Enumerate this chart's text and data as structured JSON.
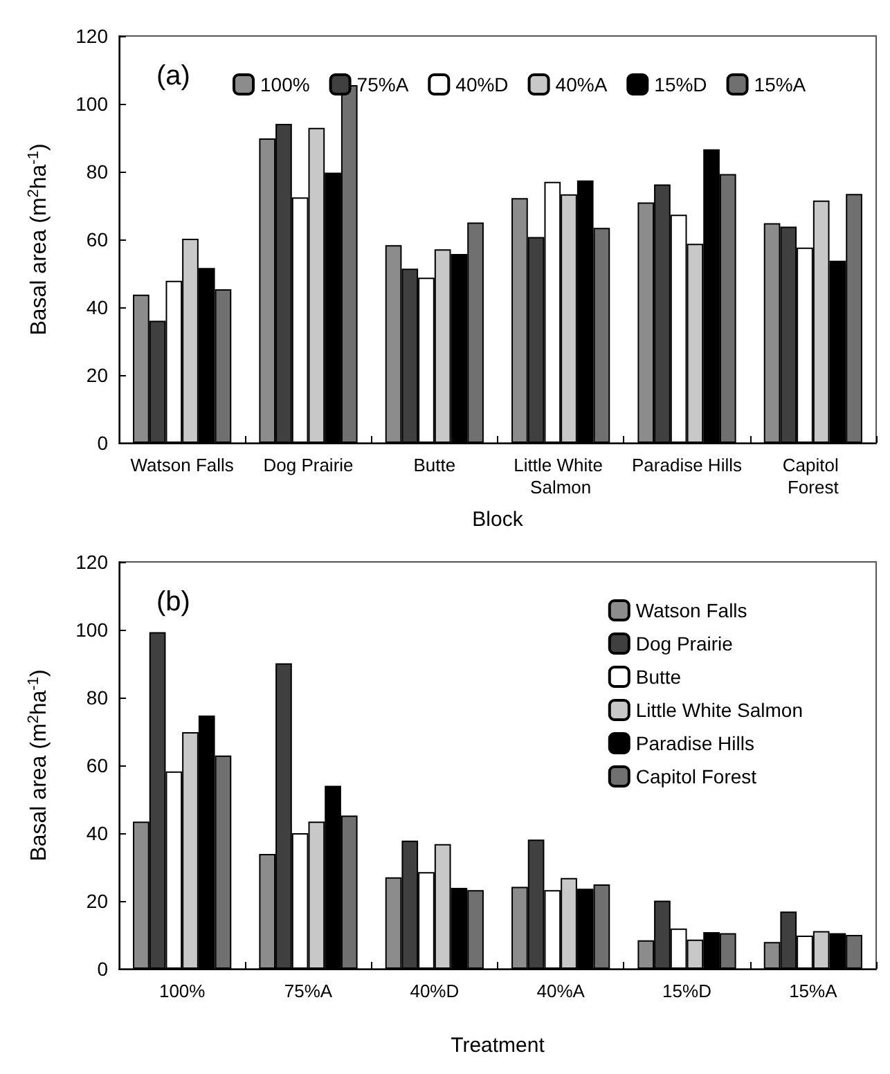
{
  "chart_data": [
    {
      "type": "bar",
      "title": "(a)",
      "xlabel": "Block",
      "ylabel": "Basal area (m$^{2}$ha$^{-1}$)",
      "categories": [
        "Watson Falls",
        "Dog Prairie",
        "Butte",
        "Little White Salmon",
        "Paradise Hills",
        "Capitol Forest"
      ],
      "series": [
        {
          "name": "100%",
          "color": "#8c8c8c",
          "values": [
            43.7,
            89.8,
            58.3,
            72.2,
            70.9,
            64.8
          ]
        },
        {
          "name": "75%A",
          "color": "#404040",
          "values": [
            36,
            94.1,
            51.4,
            60.7,
            76.2,
            63.8
          ]
        },
        {
          "name": "40%D",
          "color": "#ffffff",
          "values": [
            47.8,
            72.4,
            48.7,
            77,
            67.3,
            57.6
          ]
        },
        {
          "name": "40%A",
          "color": "#c8c8c8",
          "values": [
            60.2,
            92.9,
            57.1,
            73.3,
            58.7,
            71.5
          ]
        },
        {
          "name": "15%D",
          "color": "#000000",
          "values": [
            51.6,
            79.7,
            55.7,
            77.4,
            86.6,
            53.7
          ]
        },
        {
          "name": "15%A",
          "color": "#707070",
          "values": [
            45.3,
            105.5,
            65,
            63.4,
            79.3,
            73.4
          ]
        }
      ],
      "ylim": [
        0,
        120
      ],
      "yticks": [
        0,
        20,
        40,
        60,
        80,
        100,
        120
      ],
      "grid": false,
      "legend": "top"
    },
    {
      "type": "bar",
      "title": "(b)",
      "xlabel": "Treatment",
      "ylabel": "Basal area (m$^{2}$ha$^{-1}$)",
      "categories": [
        "100%",
        "75%A",
        "40%D",
        "40%A",
        "15%D",
        "15%A"
      ],
      "series": [
        {
          "name": "Watson Falls",
          "color": "#8c8c8c",
          "values": [
            43.4,
            33.9,
            27,
            24.2,
            8.4,
            7.9
          ]
        },
        {
          "name": "Dog Prairie",
          "color": "#404040",
          "values": [
            99.3,
            90.1,
            37.8,
            38.1,
            20.1,
            16.9
          ]
        },
        {
          "name": "Butte",
          "color": "#ffffff",
          "values": [
            58.2,
            40,
            28.5,
            23.2,
            11.9,
            9.8
          ]
        },
        {
          "name": "Little White Salmon",
          "color": "#c8c8c8",
          "values": [
            69.8,
            43.4,
            36.8,
            26.8,
            8.6,
            11.1
          ]
        },
        {
          "name": "Paradise Hills",
          "color": "#000000",
          "values": [
            74.7,
            54,
            23.9,
            23.6,
            10.8,
            10.5
          ]
        },
        {
          "name": "Capitol Forest",
          "color": "#707070",
          "values": [
            62.9,
            45.2,
            23.2,
            24.9,
            10.5,
            10
          ]
        }
      ],
      "ylim": [
        0,
        120
      ],
      "yticks": [
        0,
        20,
        40,
        60,
        80,
        100,
        120
      ],
      "grid": false,
      "legend": "top right"
    }
  ]
}
